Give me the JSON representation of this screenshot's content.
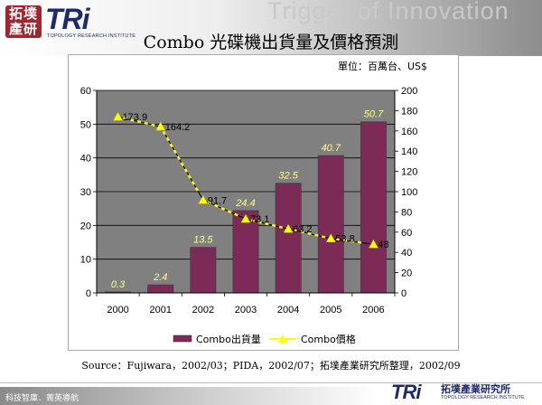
{
  "header": {
    "logo_cjk": "拓墣產研",
    "logo_tri": "TRi",
    "logo_sub": "TOPOLOGY RESEARCH INSTITUTE",
    "tagline": "Trigger of Innovation",
    "title": "Combo 光碟機出貨量及價格預測"
  },
  "chart_data": {
    "type": "bar",
    "unit_note": "單位：百萬台、US$",
    "categories": [
      "2000",
      "2001",
      "2002",
      "2003",
      "2004",
      "2005",
      "2006"
    ],
    "series": [
      {
        "name": "Combo出貨量",
        "type": "bar",
        "axis": "left",
        "color": "#7b2b55",
        "values": [
          0.3,
          2.4,
          13.5,
          24.4,
          32.5,
          40.7,
          50.7
        ]
      },
      {
        "name": "Combo價格",
        "type": "line",
        "axis": "right",
        "color": "#ffff00",
        "values": [
          173.9,
          164.2,
          91.7,
          73.1,
          63.2,
          53.8,
          48
        ]
      }
    ],
    "y_left": {
      "min": 0,
      "max": 60,
      "ticks": [
        0,
        10,
        20,
        30,
        40,
        50,
        60
      ]
    },
    "y_right": {
      "min": 0,
      "max": 200,
      "ticks": [
        0,
        20,
        40,
        60,
        80,
        100,
        120,
        140,
        160,
        180,
        200
      ]
    },
    "plot_background": "#808080",
    "grid": true,
    "legend_position": "bottom"
  },
  "source": "Source：Fujiwara，2002/03；PIDA，2002/07；拓墣產業研究所整理，2002/09",
  "footer": {
    "left_text": "科技智庫．菁英導航",
    "logo": "TRi",
    "org_name": "拓墣產業研究所",
    "org_sub": "TOPOLOGY RESEARCH INSTITUTE"
  }
}
